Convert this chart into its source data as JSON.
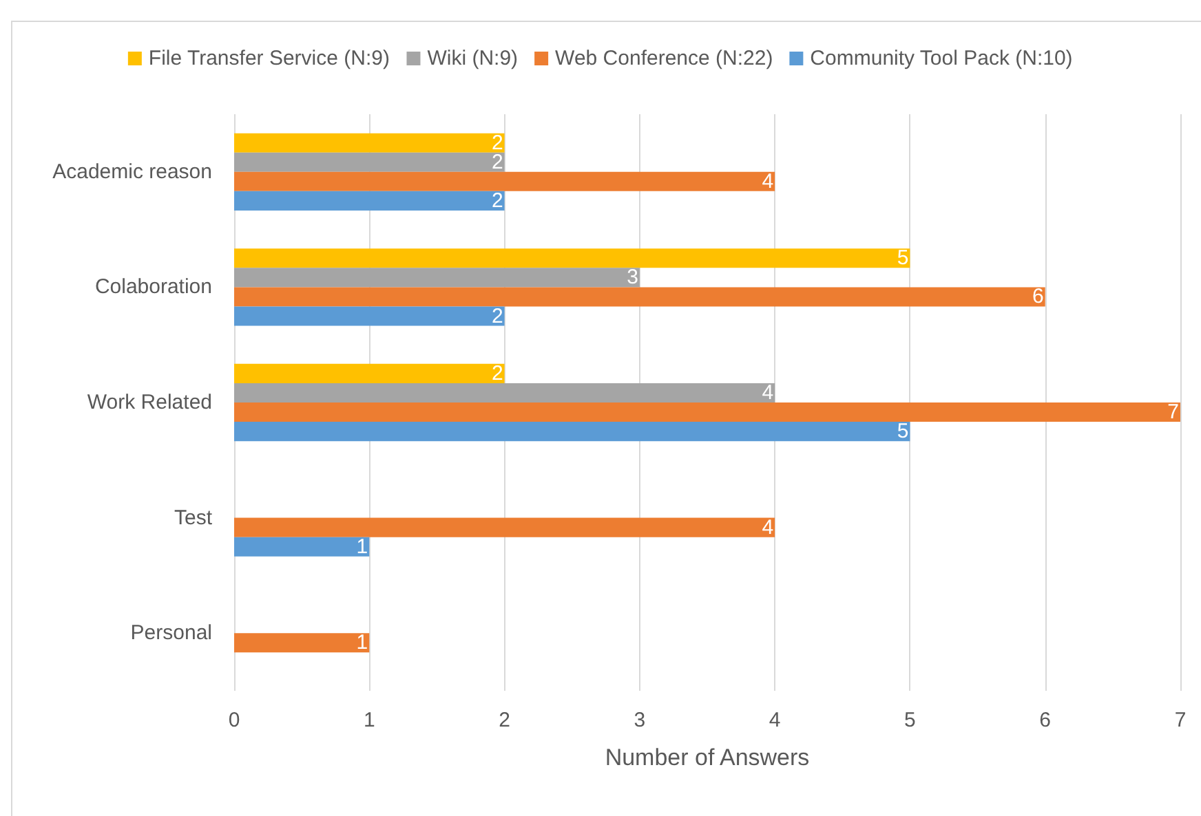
{
  "chart_data": {
    "type": "bar",
    "orientation": "horizontal",
    "categories": [
      "Academic reason",
      "Colaboration",
      "Work Related",
      "Test",
      "Personal"
    ],
    "series": [
      {
        "name": "File Transfer Service (N:9)",
        "color": "#ffc000",
        "values": [
          2,
          5,
          2,
          null,
          null
        ]
      },
      {
        "name": "Wiki (N:9)",
        "color": "#a5a5a5",
        "values": [
          2,
          3,
          4,
          null,
          null
        ]
      },
      {
        "name": "Web Conference (N:22)",
        "color": "#ed7d31",
        "values": [
          4,
          6,
          7,
          4,
          1
        ]
      },
      {
        "name": "Community Tool Pack (N:10)",
        "color": "#5b9bd5",
        "values": [
          2,
          2,
          5,
          1,
          null
        ]
      }
    ],
    "xlim": [
      0,
      7
    ],
    "xticks": [
      0,
      1,
      2,
      3,
      4,
      5,
      6,
      7
    ],
    "xlabel": "Number of Answers",
    "grid": "x",
    "legend": "top",
    "data_labels": true
  }
}
